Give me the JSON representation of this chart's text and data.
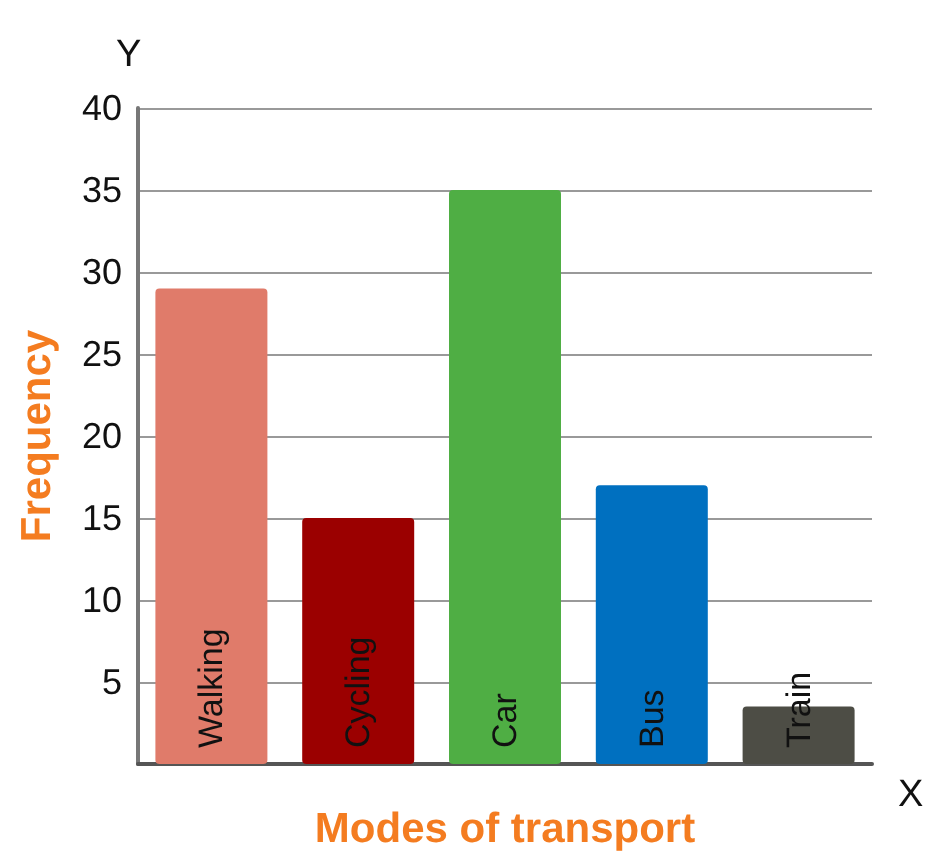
{
  "chart_data": {
    "type": "bar",
    "xlabel": "Modes of transport",
    "ylabel": "Frequency",
    "categories": [
      "Walking",
      "Cycling",
      "Car",
      "Bus",
      "Train"
    ],
    "values": [
      29,
      15,
      35,
      17,
      3.5
    ],
    "colors": [
      "#e07b6a",
      "#9b0000",
      "#4fae44",
      "#0070c0",
      "#4d4d45"
    ],
    "ylim": [
      0,
      40
    ],
    "yticks": [
      5,
      10,
      15,
      20,
      25,
      30,
      35,
      40
    ],
    "grid": "y",
    "annotations": [
      "Y",
      "X"
    ]
  }
}
